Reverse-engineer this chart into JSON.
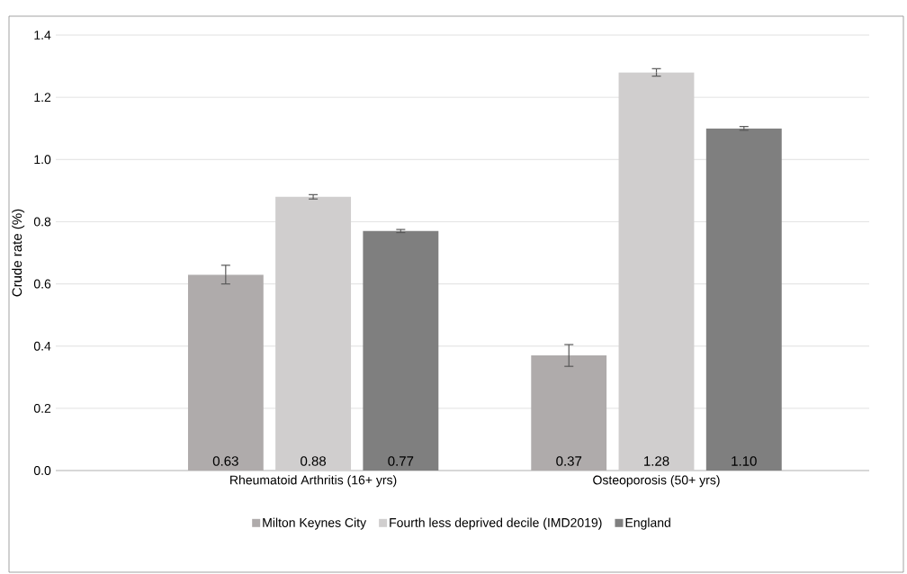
{
  "chart_data": {
    "type": "bar",
    "ylabel": "Crude rate (%)",
    "categories": [
      "Rheumatoid Arthritis (16+ yrs)",
      "Osteoporosis (50+ yrs)"
    ],
    "series": [
      {
        "name": "Milton Keynes City",
        "color": "#afabab",
        "values": [
          0.63,
          0.37
        ],
        "errors": [
          0.03,
          0.035
        ],
        "value_labels": [
          "0.63",
          "0.37"
        ]
      },
      {
        "name": "Fourth less deprived decile (IMD2019)",
        "color": "#d0cece",
        "values": [
          0.88,
          1.28
        ],
        "errors": [
          0.007,
          0.012
        ],
        "value_labels": [
          "0.88",
          "1.28"
        ]
      },
      {
        "name": "England",
        "color": "#7f7f7f",
        "values": [
          0.77,
          1.1
        ],
        "errors": [
          0.005,
          0.006
        ],
        "value_labels": [
          "0.77",
          "1.10"
        ]
      }
    ],
    "ylim": [
      0,
      1.4
    ],
    "yticks": [
      {
        "value": 0,
        "label": "0.0"
      },
      {
        "value": 0.2,
        "label": "0.2"
      },
      {
        "value": 0.4,
        "label": "0.4"
      },
      {
        "value": 0.6,
        "label": "0.6"
      },
      {
        "value": 0.8,
        "label": "0.8"
      },
      {
        "value": 1.0,
        "label": "1.0"
      },
      {
        "value": 1.2,
        "label": "1.2"
      },
      {
        "value": 1.4,
        "label": "1.4"
      }
    ],
    "grid": "y",
    "legend": "bottom"
  }
}
